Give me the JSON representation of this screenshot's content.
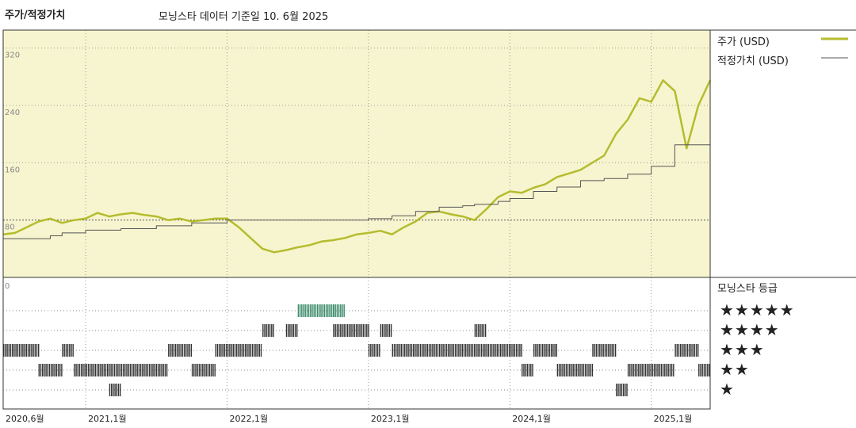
{
  "header": {
    "title": "주가/적정가치",
    "subtitle": "모닝스타 데이터 기준일 10. 6월 2025"
  },
  "legend": {
    "price_label": "주가 (USD)",
    "fair_label": "적정가치 (USD)",
    "price_color": "#b5bc2e",
    "fair_color": "#555555"
  },
  "rating_panel": {
    "title": "모닝스타 등급",
    "rows": [
      "★★★★★",
      "★★★★",
      "★★★",
      "★★",
      "★"
    ],
    "five_star_color": "#3a8a6a",
    "other_color": "#333333"
  },
  "chart_data": [
    {
      "type": "line",
      "title": "",
      "xlabel": "",
      "ylabel": "",
      "ylim": [
        0,
        345
      ],
      "yticks": [
        0,
        80,
        160,
        240,
        320
      ],
      "ytick_labels": [
        "0",
        "80",
        "160",
        "240",
        "320"
      ],
      "reference_line": 80,
      "xlim": [
        "2020-06",
        "2025-06"
      ],
      "xticks": [
        {
          "x": "2020-06",
          "label": "2020,6월"
        },
        {
          "x": "2021-01",
          "label": "2021,1월"
        },
        {
          "x": "2022-01",
          "label": "2022,1월"
        },
        {
          "x": "2023-01",
          "label": "2023,1월"
        },
        {
          "x": "2024-01",
          "label": "2024,1월"
        },
        {
          "x": "2025-01",
          "label": "2025,1월"
        }
      ],
      "background": "#f7f5cf",
      "grid": true,
      "legend_position": "right",
      "series": [
        {
          "name": "주가 (USD)",
          "color": "#b5bc2e",
          "x": [
            "2020-06",
            "2020-07",
            "2020-08",
            "2020-09",
            "2020-10",
            "2020-11",
            "2020-12",
            "2021-01",
            "2021-02",
            "2021-03",
            "2021-04",
            "2021-05",
            "2021-06",
            "2021-07",
            "2021-08",
            "2021-09",
            "2021-10",
            "2021-11",
            "2021-12",
            "2022-01",
            "2022-02",
            "2022-03",
            "2022-04",
            "2022-05",
            "2022-06",
            "2022-07",
            "2022-08",
            "2022-09",
            "2022-10",
            "2022-11",
            "2022-12",
            "2023-01",
            "2023-02",
            "2023-03",
            "2023-04",
            "2023-05",
            "2023-06",
            "2023-07",
            "2023-08",
            "2023-09",
            "2023-10",
            "2023-11",
            "2023-12",
            "2024-01",
            "2024-02",
            "2024-03",
            "2024-04",
            "2024-05",
            "2024-06",
            "2024-07",
            "2024-08",
            "2024-09",
            "2024-10",
            "2024-11",
            "2024-12",
            "2025-01",
            "2025-02",
            "2025-03",
            "2025-04",
            "2025-05",
            "2025-06"
          ],
          "y": [
            60,
            62,
            70,
            78,
            82,
            76,
            80,
            82,
            90,
            85,
            88,
            90,
            87,
            85,
            80,
            82,
            78,
            80,
            82,
            82,
            70,
            55,
            40,
            35,
            38,
            42,
            45,
            50,
            52,
            55,
            60,
            62,
            65,
            60,
            70,
            78,
            90,
            92,
            88,
            85,
            80,
            95,
            112,
            120,
            118,
            125,
            130,
            140,
            145,
            150,
            160,
            170,
            200,
            220,
            250,
            245,
            275,
            260,
            180,
            240,
            275
          ]
        },
        {
          "name": "적정가치 (USD)",
          "color": "#555555",
          "x": [
            "2020-06",
            "2020-09",
            "2020-10",
            "2020-11",
            "2021-01",
            "2021-04",
            "2021-07",
            "2021-10",
            "2022-01",
            "2022-06",
            "2022-12",
            "2023-01",
            "2023-03",
            "2023-05",
            "2023-07",
            "2023-09",
            "2023-10",
            "2023-12",
            "2024-01",
            "2024-03",
            "2024-05",
            "2024-07",
            "2024-09",
            "2024-11",
            "2025-01",
            "2025-03",
            "2025-06"
          ],
          "y": [
            54,
            54,
            58,
            62,
            66,
            68,
            72,
            76,
            80,
            80,
            80,
            82,
            86,
            92,
            98,
            100,
            102,
            106,
            110,
            120,
            126,
            135,
            138,
            144,
            155,
            185,
            200
          ]
        }
      ]
    },
    {
      "type": "heatmap",
      "title": "모닝스타 등급",
      "rows": [
        "★★★★★",
        "★★★★",
        "★★★",
        "★★",
        "★"
      ],
      "x_unit": "month",
      "periods": [
        {
          "rating": 3,
          "start": "2020-06",
          "end": "2020-09"
        },
        {
          "rating": 2,
          "start": "2020-09",
          "end": "2020-11"
        },
        {
          "rating": 3,
          "start": "2020-11",
          "end": "2020-12"
        },
        {
          "rating": 2,
          "start": "2020-12",
          "end": "2021-04"
        },
        {
          "rating": 1,
          "start": "2021-03",
          "end": "2021-04"
        },
        {
          "rating": 2,
          "start": "2021-04",
          "end": "2021-08"
        },
        {
          "rating": 3,
          "start": "2021-08",
          "end": "2021-10"
        },
        {
          "rating": 2,
          "start": "2021-10",
          "end": "2021-12"
        },
        {
          "rating": 3,
          "start": "2021-12",
          "end": "2022-04"
        },
        {
          "rating": 4,
          "start": "2022-04",
          "end": "2022-05"
        },
        {
          "rating": 4,
          "start": "2022-06",
          "end": "2022-07"
        },
        {
          "rating": 5,
          "start": "2022-07",
          "end": "2022-10"
        },
        {
          "rating": 5,
          "start": "2022-10",
          "end": "2022-11"
        },
        {
          "rating": 4,
          "start": "2022-10",
          "end": "2023-01"
        },
        {
          "rating": 3,
          "start": "2023-01",
          "end": "2023-02"
        },
        {
          "rating": 4,
          "start": "2023-02",
          "end": "2023-03"
        },
        {
          "rating": 3,
          "start": "2023-03",
          "end": "2024-02"
        },
        {
          "rating": 4,
          "start": "2023-10",
          "end": "2023-11"
        },
        {
          "rating": 2,
          "start": "2024-02",
          "end": "2024-03"
        },
        {
          "rating": 3,
          "start": "2024-03",
          "end": "2024-05"
        },
        {
          "rating": 2,
          "start": "2024-05",
          "end": "2024-08"
        },
        {
          "rating": 3,
          "start": "2024-08",
          "end": "2024-10"
        },
        {
          "rating": 1,
          "start": "2024-10",
          "end": "2024-11"
        },
        {
          "rating": 2,
          "start": "2024-11",
          "end": "2025-03"
        },
        {
          "rating": 3,
          "start": "2025-03",
          "end": "2025-05"
        },
        {
          "rating": 2,
          "start": "2025-05",
          "end": "2025-06"
        }
      ]
    }
  ]
}
